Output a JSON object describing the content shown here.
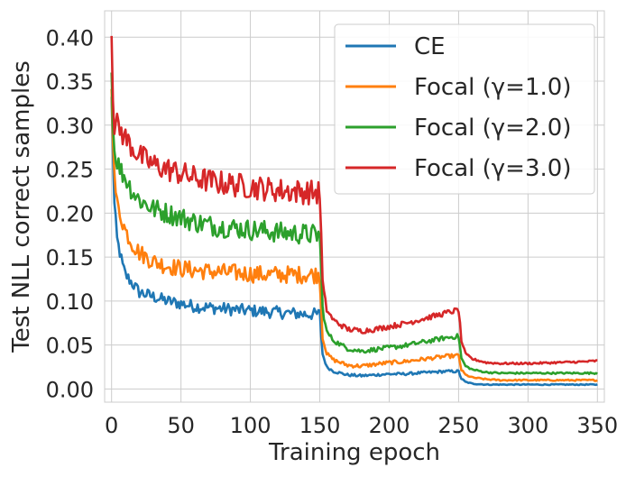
{
  "chart_data": {
    "type": "line",
    "title": "",
    "xlabel": "Training epoch",
    "ylabel": "Test NLL correct samples",
    "xlim": [
      -5,
      355
    ],
    "ylim": [
      -0.015,
      0.43
    ],
    "xticks": [
      0,
      50,
      100,
      150,
      200,
      250,
      300,
      350
    ],
    "yticks": [
      0.0,
      0.05,
      0.1,
      0.15,
      0.2,
      0.25,
      0.3,
      0.35,
      0.4
    ],
    "ytick_labels": [
      "0.00",
      "0.05",
      "0.10",
      "0.15",
      "0.20",
      "0.25",
      "0.30",
      "0.35",
      "0.40"
    ],
    "grid": true,
    "legend_position": "top-right",
    "series": [
      {
        "name": "CE",
        "color": "#1f77b4",
        "x": [
          0,
          1,
          2,
          4,
          6,
          8,
          10,
          15,
          20,
          30,
          40,
          50,
          60,
          75,
          90,
          100,
          110,
          120,
          130,
          140,
          150,
          152,
          155,
          160,
          170,
          180,
          190,
          200,
          210,
          220,
          230,
          240,
          250,
          252,
          255,
          260,
          270,
          280,
          300,
          320,
          340,
          350
        ],
        "values": [
          0.33,
          0.27,
          0.21,
          0.17,
          0.155,
          0.14,
          0.13,
          0.12,
          0.11,
          0.105,
          0.1,
          0.097,
          0.094,
          0.092,
          0.09,
          0.089,
          0.088,
          0.087,
          0.086,
          0.085,
          0.085,
          0.04,
          0.025,
          0.02,
          0.016,
          0.015,
          0.016,
          0.017,
          0.017,
          0.018,
          0.019,
          0.02,
          0.02,
          0.012,
          0.008,
          0.006,
          0.005,
          0.005,
          0.005,
          0.005,
          0.005,
          0.005
        ],
        "noise": 0.007
      },
      {
        "name": "Focal (γ=1.0)",
        "color": "#ff7f0e",
        "x": [
          0,
          1,
          2,
          4,
          6,
          8,
          10,
          15,
          20,
          30,
          40,
          50,
          60,
          75,
          90,
          100,
          110,
          120,
          130,
          140,
          150,
          152,
          155,
          160,
          170,
          180,
          190,
          200,
          210,
          220,
          230,
          240,
          250,
          252,
          255,
          260,
          270,
          280,
          300,
          320,
          340,
          350
        ],
        "values": [
          0.35,
          0.29,
          0.24,
          0.21,
          0.2,
          0.19,
          0.18,
          0.165,
          0.155,
          0.145,
          0.14,
          0.137,
          0.135,
          0.133,
          0.132,
          0.131,
          0.13,
          0.13,
          0.13,
          0.13,
          0.13,
          0.06,
          0.04,
          0.033,
          0.027,
          0.026,
          0.028,
          0.03,
          0.031,
          0.033,
          0.035,
          0.037,
          0.038,
          0.022,
          0.016,
          0.013,
          0.011,
          0.01,
          0.01,
          0.01,
          0.01,
          0.01
        ],
        "noise": 0.01
      },
      {
        "name": "Focal (γ=2.0)",
        "color": "#2ca02c",
        "x": [
          0,
          1,
          2,
          4,
          6,
          8,
          10,
          15,
          20,
          30,
          40,
          50,
          60,
          75,
          90,
          100,
          110,
          120,
          130,
          140,
          150,
          152,
          155,
          160,
          170,
          180,
          190,
          200,
          210,
          220,
          230,
          240,
          250,
          252,
          255,
          260,
          270,
          280,
          300,
          320,
          340,
          350
        ],
        "values": [
          0.36,
          0.31,
          0.27,
          0.26,
          0.25,
          0.245,
          0.24,
          0.225,
          0.215,
          0.205,
          0.2,
          0.195,
          0.19,
          0.185,
          0.183,
          0.181,
          0.18,
          0.178,
          0.177,
          0.176,
          0.175,
          0.09,
          0.065,
          0.055,
          0.046,
          0.043,
          0.045,
          0.047,
          0.049,
          0.052,
          0.055,
          0.058,
          0.06,
          0.035,
          0.026,
          0.022,
          0.019,
          0.018,
          0.018,
          0.018,
          0.018,
          0.018
        ],
        "noise": 0.012
      },
      {
        "name": "Focal (γ=3.0)",
        "color": "#d62728",
        "x": [
          0,
          1,
          2,
          4,
          6,
          8,
          10,
          15,
          20,
          30,
          40,
          50,
          60,
          75,
          90,
          100,
          110,
          120,
          130,
          140,
          150,
          152,
          155,
          160,
          170,
          180,
          190,
          200,
          210,
          220,
          230,
          240,
          250,
          252,
          255,
          260,
          270,
          280,
          300,
          320,
          340,
          350
        ],
        "values": [
          0.405,
          0.34,
          0.3,
          0.3,
          0.295,
          0.29,
          0.285,
          0.275,
          0.265,
          0.255,
          0.25,
          0.245,
          0.24,
          0.235,
          0.232,
          0.23,
          0.228,
          0.226,
          0.225,
          0.224,
          0.223,
          0.12,
          0.09,
          0.078,
          0.068,
          0.066,
          0.068,
          0.071,
          0.074,
          0.078,
          0.082,
          0.086,
          0.09,
          0.055,
          0.04,
          0.034,
          0.03,
          0.029,
          0.029,
          0.03,
          0.031,
          0.032
        ],
        "noise": 0.014
      }
    ]
  }
}
